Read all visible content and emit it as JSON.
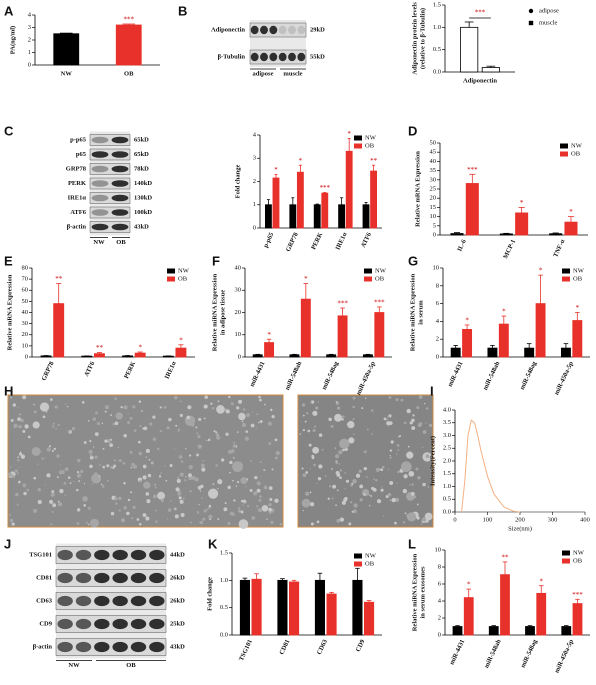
{
  "panel_letters": [
    "A",
    "B",
    "C",
    "D",
    "E",
    "F",
    "G",
    "H",
    "I",
    "J",
    "K",
    "L"
  ],
  "blot_b": {
    "rows": [
      "Adiponectin",
      "β-Tubulin"
    ],
    "sizes": [
      "29kD",
      "55kD"
    ],
    "groups": [
      "adipose",
      "muscle"
    ]
  },
  "blot_c": {
    "rows": [
      "p-p65",
      "p65",
      "GRP78",
      "PERK",
      "IRE1α",
      "ATF6",
      "β-actin"
    ],
    "sizes": [
      "65kD",
      "65kD",
      "78kD",
      "140kD",
      "130kD",
      "100kD",
      "43kD"
    ],
    "groups": [
      "NW",
      "OB"
    ]
  },
  "blot_j": {
    "rows": [
      "TSG101",
      "CD81",
      "CD63",
      "CD9",
      "β-actin"
    ],
    "sizes": [
      "44kD",
      "26kD",
      "26kD",
      "25kD",
      "43kD"
    ],
    "groups": [
      "NW",
      "OB"
    ]
  },
  "chart_data": [
    {
      "type": "bar",
      "ylabel": [
        "PA(ng/ml)"
      ],
      "categories": [
        "NW",
        "OB"
      ],
      "values": [
        2.5,
        3.2
      ],
      "errors": [
        0.05,
        0.08
      ],
      "colors": [
        "#000000",
        "#e8312a"
      ],
      "annotations": [
        null,
        "***"
      ],
      "ylim": [
        0,
        4
      ],
      "yticks": [
        0,
        1,
        2,
        3,
        4
      ]
    },
    {
      "type": "bar",
      "ylabel": [
        "Adiponectin protein levels",
        "(relative to β-Tubulin)"
      ],
      "categories": [
        "Adiponectin"
      ],
      "series": [
        {
          "name": "adipose",
          "color": "#ffffff",
          "marker": "circle",
          "values": [
            1.0
          ],
          "errors": [
            0.12
          ]
        },
        {
          "name": "muscle",
          "color": "#ffffff",
          "marker": "square",
          "values": [
            0.1
          ],
          "errors": [
            0.03
          ]
        }
      ],
      "annotations": [
        "***"
      ],
      "ylim": [
        0,
        1.5
      ],
      "yticks": [
        {
          "value": 0,
          "label": "0.0"
        },
        {
          "value": 0.5,
          "label": "0.5"
        },
        {
          "value": 1,
          "label": "1.0"
        },
        {
          "value": 1.5,
          "label": "1.5"
        }
      ],
      "legend": "outside-right"
    },
    {
      "type": "bar",
      "ylabel": [
        "Fold change"
      ],
      "categories": [
        "p-p65",
        "GRP78",
        "PERK",
        "IRE1α",
        "ATF6"
      ],
      "series": [
        {
          "name": "NW",
          "color": "#000000",
          "values": [
            1,
            1,
            1,
            1,
            1
          ],
          "errors": [
            0.22,
            0.3,
            0.03,
            0.3,
            0.1
          ]
        },
        {
          "name": "OB",
          "color": "#e8312a",
          "values": [
            2.15,
            2.4,
            1.5,
            3.3,
            2.45
          ],
          "errors": [
            0.15,
            0.3,
            0.03,
            0.55,
            0.25
          ]
        }
      ],
      "annotations": [
        "*",
        "*",
        "***",
        "*",
        "**"
      ],
      "ylim": [
        0,
        4
      ],
      "yticks": [
        0,
        1,
        2,
        3,
        4
      ],
      "legend": "top-right"
    },
    {
      "type": "bar",
      "ylabel": [
        "Relative mRNA Expression"
      ],
      "categories": [
        "IL-6",
        "MCP-1",
        "TNF-α"
      ],
      "series": [
        {
          "name": "NW",
          "color": "#000000",
          "values": [
            0.8,
            0.6,
            0.7
          ],
          "errors": [
            0.5,
            0.3,
            0.4
          ]
        },
        {
          "name": "OB",
          "color": "#e8312a",
          "values": [
            28,
            12,
            7
          ],
          "errors": [
            5,
            3,
            3
          ]
        }
      ],
      "annotations": [
        "***",
        "*",
        "*"
      ],
      "ylim": [
        0,
        50
      ],
      "yticks": [
        0,
        5,
        10,
        15,
        20,
        25,
        30,
        35,
        40,
        45,
        50
      ],
      "legend": "top-right"
    },
    {
      "type": "bar",
      "ylabel": [
        "Relative mRNA Expression"
      ],
      "categories": [
        "GRP78",
        "ATF6",
        "PERK",
        "IRE1α"
      ],
      "series": [
        {
          "name": "NW",
          "color": "#000000",
          "values": [
            1,
            0.8,
            1,
            0.8
          ],
          "errors": [
            0.3,
            0.2,
            0.3,
            0.2
          ]
        },
        {
          "name": "OB",
          "color": "#e8312a",
          "values": [
            48,
            3,
            3.5,
            8
          ],
          "errors": [
            18,
            1,
            1,
            3
          ]
        }
      ],
      "annotations": [
        "**",
        "**",
        "*",
        "*"
      ],
      "ylim": [
        0,
        80
      ],
      "yticks": [
        0,
        10,
        20,
        30,
        40,
        50,
        60,
        70,
        80
      ],
      "legend": "top-right"
    },
    {
      "type": "bar",
      "ylabel": [
        "Relative miRNA Expression",
        "in adipose tissue"
      ],
      "categories": [
        "miR-4431",
        "miR-548ah",
        "miR-548ag",
        "miR-450a-5p"
      ],
      "series": [
        {
          "name": "NW",
          "color": "#000000",
          "values": [
            1,
            1,
            1,
            1
          ],
          "errors": [
            0.2,
            0.2,
            0.2,
            0.2
          ]
        },
        {
          "name": "OB",
          "color": "#e8312a",
          "values": [
            6.5,
            26,
            18.5,
            20
          ],
          "errors": [
            1.5,
            7,
            3.5,
            2.5
          ]
        }
      ],
      "annotations": [
        "*",
        "*",
        "***",
        "***"
      ],
      "ylim": [
        0,
        40
      ],
      "yticks": [
        0,
        10,
        20,
        30,
        40
      ],
      "legend": "top-right"
    },
    {
      "type": "bar",
      "ylabel": [
        "Relative miRNA Expression",
        "in serum"
      ],
      "categories": [
        "miR-4431",
        "miR-548ah",
        "miR-548ag",
        "miR-450a-5p"
      ],
      "series": [
        {
          "name": "NW",
          "color": "#000000",
          "values": [
            1,
            1,
            1,
            1
          ],
          "errors": [
            0.3,
            0.3,
            0.5,
            0.5
          ]
        },
        {
          "name": "OB",
          "color": "#e8312a",
          "values": [
            3.1,
            3.7,
            6,
            4.1
          ],
          "errors": [
            0.5,
            0.9,
            3.2,
            0.9
          ]
        }
      ],
      "annotations": [
        "*",
        "*",
        "*",
        "*"
      ],
      "ylim": [
        0,
        10
      ],
      "yticks": [
        0,
        2,
        4,
        6,
        8,
        10
      ],
      "legend": "top-right"
    },
    {
      "type": "line",
      "ylabel": [
        "Intensity(Percent)"
      ],
      "xlabel": "Size(nm)",
      "color": "#f4b183",
      "x": [
        20,
        30,
        40,
        50,
        60,
        70,
        80,
        100,
        120,
        150,
        180,
        200
      ],
      "values": [
        0,
        1.2,
        3.0,
        3.6,
        3.5,
        3.0,
        2.4,
        1.4,
        0.7,
        0.2,
        0.03,
        0
      ],
      "xlim": [
        0,
        400
      ],
      "xticks": [
        0,
        100,
        200,
        300,
        400
      ],
      "ylim": [
        0,
        4
      ],
      "yticks": [
        {
          "value": 0,
          "label": "0.0"
        },
        {
          "value": 0.5,
          "label": "0.5"
        },
        {
          "value": 1,
          "label": "1.0"
        },
        {
          "value": 1.5,
          "label": "1.5"
        },
        {
          "value": 2,
          "label": "2.0"
        },
        {
          "value": 2.5,
          "label": "2.5"
        },
        {
          "value": 3,
          "label": "3.0"
        },
        {
          "value": 3.5,
          "label": "3.5"
        },
        {
          "value": 4,
          "label": "4.0"
        }
      ]
    },
    {
      "type": "bar",
      "ylabel": [
        "Fold change"
      ],
      "categories": [
        "TSG101",
        "CD81",
        "CD63",
        "CD9"
      ],
      "series": [
        {
          "name": "NW",
          "color": "#000000",
          "values": [
            1,
            1,
            1,
            1
          ],
          "errors": [
            0.04,
            0.03,
            0.13,
            0.22
          ]
        },
        {
          "name": "OB",
          "color": "#e8312a",
          "values": [
            1.02,
            0.97,
            0.75,
            0.6
          ],
          "errors": [
            0.1,
            0.03,
            0.03,
            0.03
          ]
        }
      ],
      "ylim": [
        0,
        1.5
      ],
      "yticks": [
        {
          "value": 0,
          "label": "0.0"
        },
        {
          "value": 0.5,
          "label": "0.5"
        },
        {
          "value": 1,
          "label": "1.0"
        },
        {
          "value": 1.5,
          "label": "1.5"
        }
      ],
      "legend": "top-right"
    },
    {
      "type": "bar",
      "ylabel": [
        "Relative miRNA Expression",
        "in serum exosomes"
      ],
      "categories": [
        "miR-4431",
        "miR-548ah",
        "miR-548ag",
        "miR-450a-5p"
      ],
      "series": [
        {
          "name": "NW",
          "color": "#000000",
          "values": [
            1,
            1,
            1,
            1
          ],
          "errors": [
            0.1,
            0.1,
            0.1,
            0.1
          ]
        },
        {
          "name": "OB",
          "color": "#e8312a",
          "values": [
            4.4,
            7.1,
            4.9,
            3.7
          ],
          "errors": [
            1,
            1.5,
            0.9,
            0.5
          ]
        }
      ],
      "annotations": [
        "*",
        "**",
        "*",
        "***"
      ],
      "ylim": [
        0,
        10
      ],
      "yticks": [
        0,
        2,
        4,
        6,
        8,
        10
      ],
      "legend": "top-right"
    }
  ]
}
